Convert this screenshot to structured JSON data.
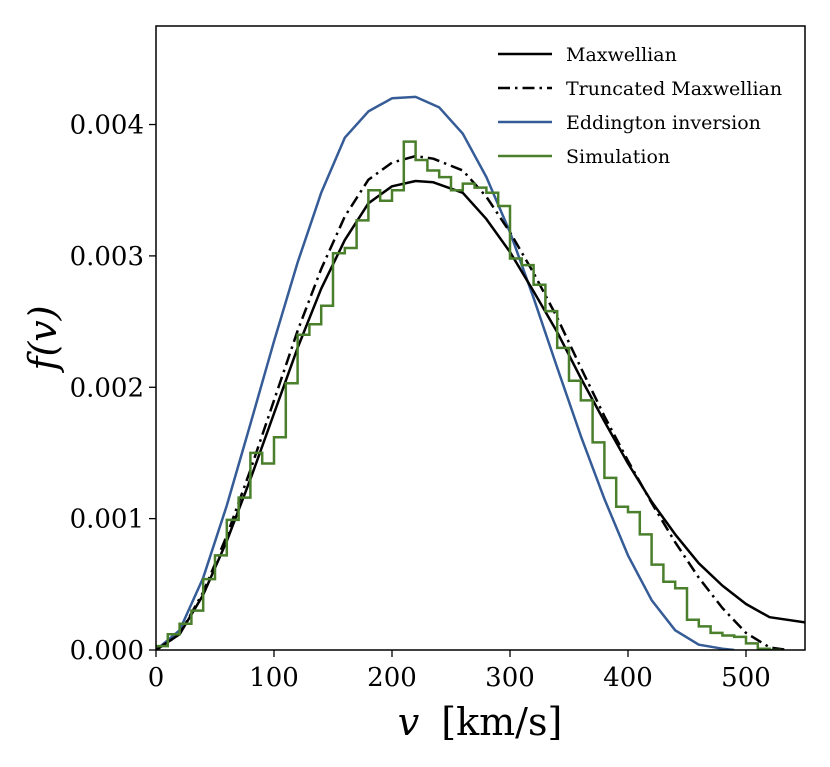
{
  "chart_data": {
    "type": "line",
    "xlabel_var": "v",
    "xlabel_unit": "[km/s]",
    "ylabel": "f(v)",
    "xlim": [
      0,
      550
    ],
    "ylim": [
      0,
      0.00475
    ],
    "xticks": [
      0,
      100,
      200,
      300,
      400,
      500
    ],
    "xtick_labels": [
      "0",
      "100",
      "200",
      "300",
      "400",
      "500"
    ],
    "yticks": [
      0,
      0.001,
      0.002,
      0.003,
      0.004
    ],
    "ytick_labels": [
      "0.000",
      "0.001",
      "0.002",
      "0.003",
      "0.004"
    ],
    "legend_position": "top-right",
    "series": [
      {
        "name": "Maxwellian",
        "color": "#000000",
        "style": "solid",
        "x": [
          0,
          20,
          40,
          60,
          80,
          100,
          120,
          140,
          160,
          180,
          200,
          220,
          235,
          260,
          280,
          300,
          320,
          340,
          360,
          380,
          400,
          420,
          440,
          460,
          480,
          500,
          520,
          550
        ],
        "y": [
          0,
          0.00012,
          0.00042,
          0.00083,
          0.0013,
          0.0018,
          0.0023,
          0.00275,
          0.00312,
          0.0034,
          0.00353,
          0.00357,
          0.00356,
          0.00348,
          0.00328,
          0.00303,
          0.00273,
          0.00242,
          0.00207,
          0.00174,
          0.00142,
          0.00113,
          0.00088,
          0.00066,
          0.00049,
          0.00035,
          0.00025,
          0.00021
        ]
      },
      {
        "name": "Truncated Maxwellian",
        "color": "#000000",
        "style": "dashdot",
        "x": [
          0,
          20,
          40,
          60,
          80,
          100,
          120,
          140,
          160,
          180,
          200,
          220,
          235,
          260,
          280,
          300,
          320,
          340,
          360,
          380,
          400,
          420,
          440,
          460,
          480,
          500,
          520,
          535
        ],
        "y": [
          0,
          0.00012,
          0.00044,
          0.00087,
          0.00137,
          0.0019,
          0.00243,
          0.0029,
          0.0033,
          0.00358,
          0.00371,
          0.00376,
          0.00374,
          0.00365,
          0.00345,
          0.00318,
          0.00287,
          0.00253,
          0.00215,
          0.00178,
          0.00144,
          0.00112,
          0.00082,
          0.00055,
          0.00032,
          0.00013,
          2e-05,
          0
        ]
      },
      {
        "name": "Eddington inversion",
        "color": "#355C96",
        "style": "solid",
        "x": [
          0,
          20,
          40,
          60,
          80,
          100,
          120,
          140,
          160,
          180,
          200,
          220,
          240,
          260,
          280,
          300,
          320,
          340,
          360,
          380,
          400,
          420,
          440,
          460,
          480,
          490
        ],
        "y": [
          0,
          0.00015,
          0.00055,
          0.0011,
          0.00172,
          0.00235,
          0.00295,
          0.00348,
          0.0039,
          0.0041,
          0.0042,
          0.00421,
          0.00413,
          0.00393,
          0.0036,
          0.00318,
          0.00268,
          0.00215,
          0.00163,
          0.00115,
          0.00072,
          0.00038,
          0.00015,
          4e-05,
          1e-05,
          0
        ]
      },
      {
        "name": "Simulation",
        "color": "#4A7F2C",
        "style": "step",
        "edges": [
          0,
          10,
          20,
          30,
          40,
          50,
          60,
          70,
          80,
          90,
          100,
          110,
          120,
          130,
          140,
          150,
          160,
          170,
          180,
          190,
          200,
          210,
          220,
          230,
          240,
          250,
          260,
          270,
          280,
          290,
          300,
          310,
          320,
          330,
          340,
          350,
          360,
          370,
          380,
          390,
          400,
          410,
          420,
          430,
          440,
          450,
          460,
          470,
          480,
          490,
          500,
          510,
          520,
          530
        ],
        "values": [
          3e-05,
          0.00012,
          0.0002,
          0.0003,
          0.00054,
          0.00072,
          0.00099,
          0.00116,
          0.0015,
          0.00142,
          0.00162,
          0.00203,
          0.0024,
          0.00248,
          0.00262,
          0.00302,
          0.00306,
          0.00327,
          0.0035,
          0.00342,
          0.0035,
          0.00387,
          0.00373,
          0.00365,
          0.0036,
          0.0035,
          0.00355,
          0.00352,
          0.00348,
          0.00338,
          0.00298,
          0.00293,
          0.00278,
          0.00258,
          0.0023,
          0.00205,
          0.0019,
          0.00158,
          0.00131,
          0.00109,
          0.00105,
          0.00088,
          0.00065,
          0.00052,
          0.00047,
          0.00023,
          0.00018,
          0.00013,
          0.00011,
          0.0001,
          5e-05,
          1e-05,
          0
        ]
      }
    ]
  }
}
